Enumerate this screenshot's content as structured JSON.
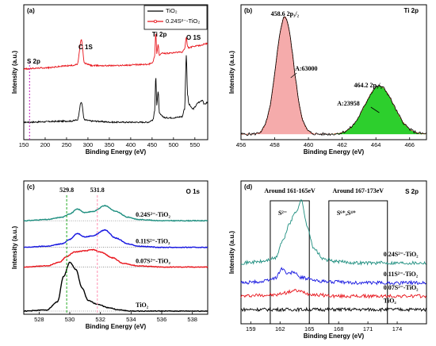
{
  "chart_data": [
    {
      "type": "line",
      "panel": "(a)",
      "xlabel": "Binding Energy (eV)",
      "ylabel": "Intensity (a.u.)",
      "xlim": [
        150,
        580
      ],
      "xticks": [
        "150",
        "200",
        "250",
        "300",
        "350",
        "400",
        "450",
        "500",
        "550"
      ],
      "legend": [
        {
          "name": "TiO₂",
          "color": "#000000"
        },
        {
          "name": "0.24S²⁻-TiO₂",
          "color": "#e8141b"
        }
      ],
      "annotations": [
        "S 2p",
        "C 1S",
        "Ti 2p",
        "O 1S"
      ],
      "colors": {
        "tio2": "#000000",
        "doped": "#e8141b",
        "marker": "#c020c0"
      },
      "series": [
        {
          "name": "TiO₂",
          "color": "#000000",
          "x": [
            150,
            260,
            275,
            284.5,
            292,
            310,
            360,
            440,
            452,
            456,
            458.6,
            461,
            464.2,
            467,
            472,
            480,
            500,
            520,
            526,
            530,
            533,
            536,
            545,
            560,
            568,
            572,
            580
          ],
          "y": [
            0.1,
            0.11,
            0.12,
            0.28,
            0.12,
            0.11,
            0.1,
            0.1,
            0.12,
            0.2,
            0.52,
            0.25,
            0.38,
            0.18,
            0.16,
            0.14,
            0.14,
            0.15,
            0.22,
            0.7,
            0.35,
            0.26,
            0.22,
            0.28,
            0.3,
            0.26,
            0.28
          ]
        },
        {
          "name": "0.24S²⁻-TiO₂",
          "color": "#e8141b",
          "x": [
            150,
            200,
            260,
            275,
            284.5,
            292,
            310,
            360,
            440,
            452,
            456,
            458.6,
            461,
            464.2,
            467,
            472,
            490,
            510,
            520,
            526,
            530,
            533,
            536,
            545,
            560,
            580
          ],
          "y": [
            0.58,
            0.59,
            0.61,
            0.62,
            0.84,
            0.63,
            0.61,
            0.61,
            0.62,
            0.64,
            0.7,
            0.91,
            0.72,
            0.8,
            0.7,
            0.72,
            0.72,
            0.73,
            0.73,
            0.76,
            0.86,
            0.78,
            0.77,
            0.78,
            0.79,
            0.81
          ]
        }
      ]
    },
    {
      "type": "line",
      "panel": "(b)",
      "title": "Ti 2p",
      "xlabel": "Binding Energy (eV)",
      "ylabel": "Intensity (a.u.)",
      "xlim": [
        456,
        467
      ],
      "xticks": [
        "456",
        "458",
        "460",
        "462",
        "464",
        "466"
      ],
      "annotations": [
        "458.6 2p₃/₂",
        "A:63000",
        "464.2 2p₁/₂",
        "A:23958"
      ],
      "peaks": [
        {
          "center": 458.6,
          "label": "2p₃/₂",
          "area": 63000,
          "color": "#f4a6a6",
          "height": 1.0,
          "sigma": 0.52
        },
        {
          "center": 464.2,
          "label": "2p₁/₂",
          "area": 23958,
          "color": "#22cc22",
          "height": 0.41,
          "sigma": 0.85
        }
      ],
      "baseline": 0.04
    },
    {
      "type": "line",
      "panel": "(c)",
      "title": "O 1s",
      "xlabel": "Binding Energy (eV)",
      "ylabel": "Intensity (a.u.)",
      "xlim": [
        527,
        539
      ],
      "xticks": [
        "528",
        "530",
        "532",
        "534",
        "536",
        "538"
      ],
      "markers": [
        {
          "x": 529.8,
          "label": "529.8",
          "color": "#22aa22"
        },
        {
          "x": 531.8,
          "label": "531.8",
          "color": "#ff8fb0"
        }
      ],
      "series": [
        {
          "name": "0.24S²⁻-TiO₂",
          "color": "#1f8f80",
          "offset": 0.78,
          "x": [
            527,
            528.5,
            529.5,
            530,
            530.5,
            531,
            531.5,
            532.3,
            533,
            533.8,
            534.5,
            536,
            539
          ],
          "y": [
            0.0,
            0.01,
            0.03,
            0.06,
            0.1,
            0.07,
            0.08,
            0.13,
            0.08,
            0.03,
            0.01,
            0.0,
            0.0
          ]
        },
        {
          "name": "0.11S²⁻-TiO₂",
          "color": "#1414e0",
          "offset": 0.55,
          "x": [
            527,
            528.5,
            529.5,
            530,
            530.5,
            531,
            531.5,
            532.3,
            533,
            533.8,
            534.5,
            536,
            539
          ],
          "y": [
            0.0,
            0.01,
            0.03,
            0.07,
            0.12,
            0.09,
            0.1,
            0.15,
            0.08,
            0.03,
            0.01,
            0.0,
            0.0
          ]
        },
        {
          "name": "0.07S²⁻-TiO₂",
          "color": "#e8141b",
          "offset": 0.38,
          "x": [
            527,
            528.5,
            529.3,
            529.8,
            530.3,
            531,
            531.5,
            532,
            532.8,
            533.5,
            534.5,
            536,
            539
          ],
          "y": [
            0.0,
            0.01,
            0.04,
            0.09,
            0.13,
            0.14,
            0.15,
            0.13,
            0.08,
            0.03,
            0.01,
            0.0,
            0.0
          ]
        },
        {
          "name": "TiO₂",
          "color": "#000000",
          "offset": 0.0,
          "x": [
            527,
            528.5,
            529.2,
            529.6,
            530,
            530.4,
            530.8,
            531.2,
            531.8,
            532.5,
            533.2,
            534,
            536,
            539
          ],
          "y": [
            0.0,
            0.01,
            0.08,
            0.3,
            0.42,
            0.36,
            0.2,
            0.09,
            0.06,
            0.03,
            0.01,
            0.0,
            0.0,
            0.0
          ]
        }
      ]
    },
    {
      "type": "line",
      "panel": "(d)",
      "title": "S 2p",
      "xlabel": "Binding Energy (eV)",
      "ylabel": "Intensity (a.u.)",
      "xlim": [
        158,
        177
      ],
      "xticks": [
        "159",
        "162",
        "165",
        "168",
        "171",
        "174"
      ],
      "regions": [
        {
          "from": 161,
          "to": 165,
          "label": "Around 161-165eV",
          "species": "S²⁻"
        },
        {
          "from": 167,
          "to": 173,
          "label": "Around 167-173eV",
          "species": "S⁶⁺,S⁴⁺"
        }
      ],
      "series": [
        {
          "name": "0.24S²⁻-TiO₂",
          "color": "#1f8f80",
          "offset": 0.42,
          "x": [
            158,
            160,
            161.5,
            162.3,
            163,
            163.6,
            164.2,
            164.8,
            165.5,
            166.5,
            168,
            170,
            172,
            174,
            177
          ],
          "y": [
            0.0,
            0.01,
            0.04,
            0.2,
            0.36,
            0.46,
            0.56,
            0.32,
            0.12,
            0.03,
            0.01,
            0.0,
            0.0,
            0.0,
            0.0
          ]
        },
        {
          "name": "0.11S²⁻-TiO₂",
          "color": "#1414e0",
          "offset": 0.24,
          "x": [
            158,
            160,
            161.5,
            162.2,
            162.8,
            163.4,
            164,
            164.8,
            165.5,
            167,
            170,
            174,
            177
          ],
          "y": [
            0.0,
            0.01,
            0.04,
            0.13,
            0.08,
            0.1,
            0.05,
            0.04,
            0.02,
            0.01,
            0.0,
            0.0,
            0.0
          ]
        },
        {
          "name": "0.07S²⁻-TiO₂",
          "color": "#e8141b",
          "offset": 0.12,
          "x": [
            158,
            160,
            161.5,
            162.5,
            163.5,
            164.3,
            165,
            166,
            168,
            171,
            174,
            177
          ],
          "y": [
            0.0,
            0.01,
            0.01,
            0.03,
            0.05,
            0.04,
            0.02,
            0.01,
            0.0,
            0.0,
            0.0,
            0.0
          ]
        },
        {
          "name": "TiO₂",
          "color": "#000000",
          "offset": 0.0,
          "x": [
            158,
            162,
            166,
            170,
            174,
            177
          ],
          "y": [
            0.0,
            0.0,
            0.0,
            0.0,
            0.0,
            0.0
          ]
        }
      ]
    }
  ]
}
